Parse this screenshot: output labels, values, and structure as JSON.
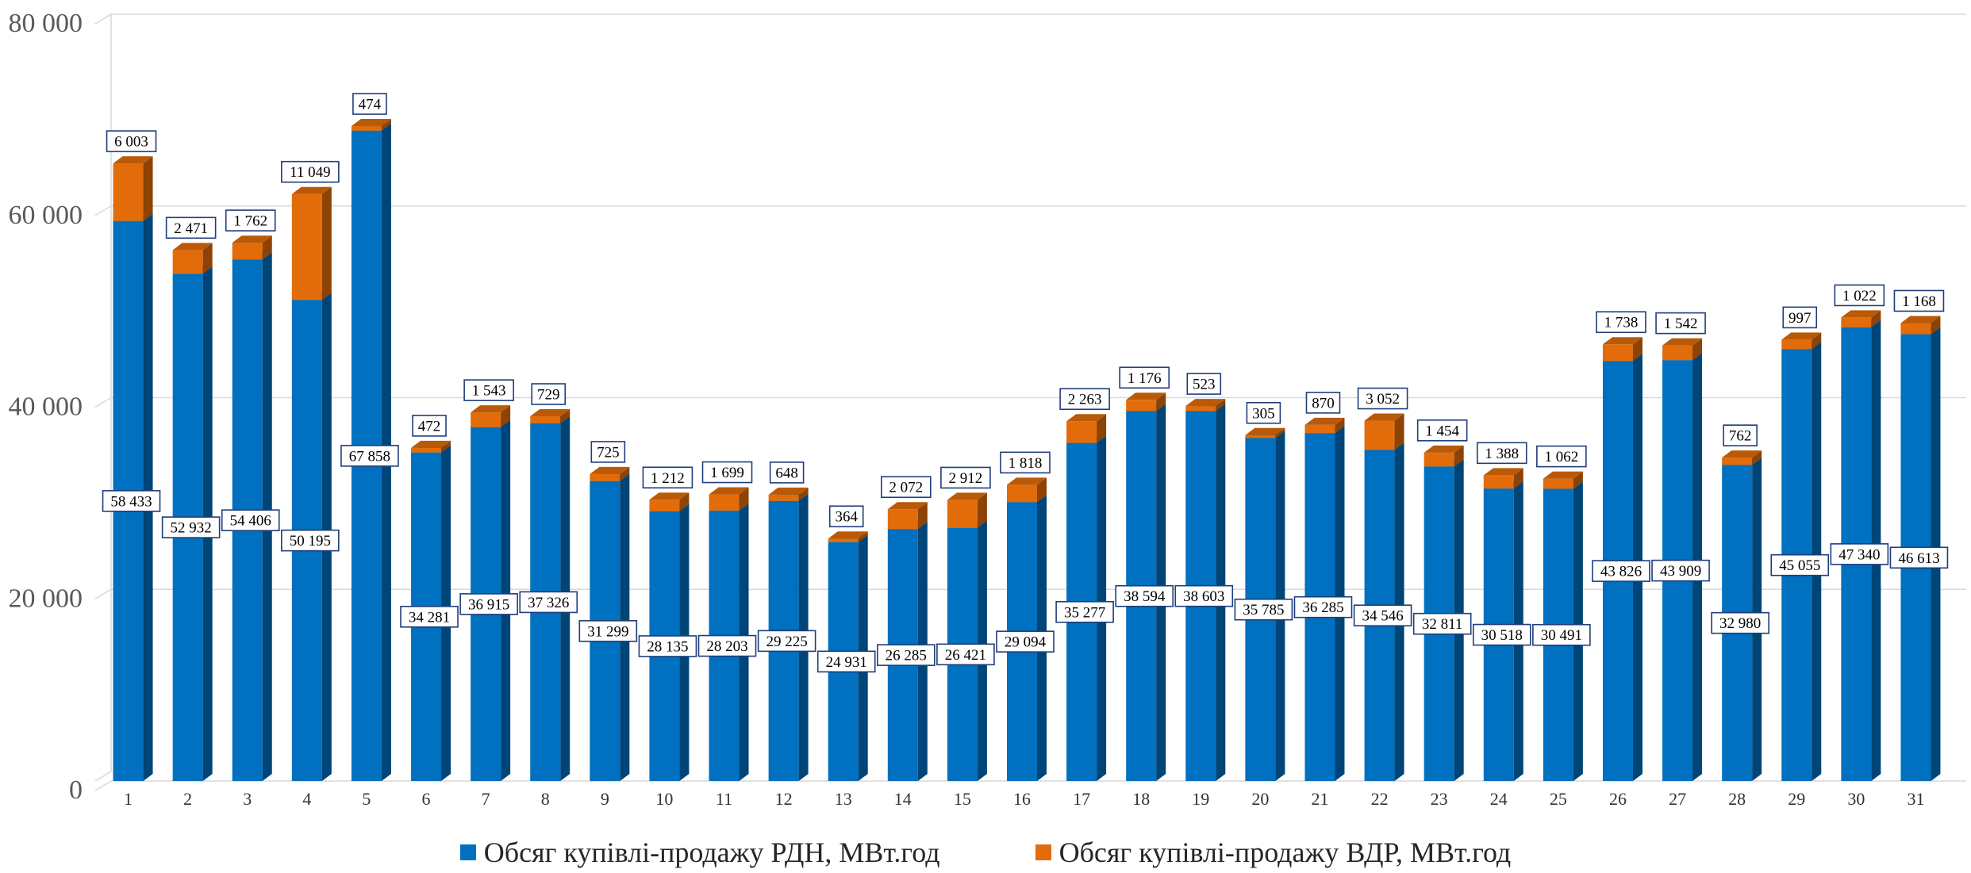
{
  "chart_data": {
    "type": "bar",
    "stacked": true,
    "categories": [
      "1",
      "2",
      "3",
      "4",
      "5",
      "6",
      "7",
      "8",
      "9",
      "10",
      "11",
      "12",
      "13",
      "14",
      "15",
      "16",
      "17",
      "18",
      "19",
      "20",
      "21",
      "22",
      "23",
      "24",
      "25",
      "26",
      "27",
      "28",
      "29",
      "30",
      "31"
    ],
    "series": [
      {
        "name": "Обсяг купівлі-продажу РДН, МВт.год",
        "color": "#0070c0",
        "values": [
          58433,
          52932,
          54406,
          50195,
          67858,
          34281,
          36915,
          37326,
          31299,
          28135,
          28203,
          29225,
          24931,
          26285,
          26421,
          29094,
          35277,
          38594,
          38603,
          35785,
          36285,
          34546,
          32811,
          30518,
          30491,
          43826,
          43909,
          32980,
          45055,
          47340,
          46613
        ],
        "labels": [
          "58 433",
          "52 932",
          "54 406",
          "50 195",
          "67 858",
          "34 281",
          "36 915",
          "37 326",
          "31 299",
          "28 135",
          "28 203",
          "29 225",
          "24 931",
          "26 285",
          "26 421",
          "29 094",
          "35 277",
          "38 594",
          "38 603",
          "35 785",
          "36 285",
          "34 546",
          "32 811",
          "30 518",
          "30 491",
          "43 826",
          "43 909",
          "32 980",
          "45 055",
          "47 340",
          "46 613"
        ]
      },
      {
        "name": "Обсяг купівлі-продажу ВДР, МВт.год",
        "color": "#e36c0a",
        "values": [
          6003,
          2471,
          1762,
          11049,
          474,
          472,
          1543,
          729,
          725,
          1212,
          1699,
          648,
          364,
          2072,
          2912,
          1818,
          2263,
          1176,
          523,
          305,
          870,
          3052,
          1454,
          1388,
          1062,
          1738,
          1542,
          762,
          997,
          1022,
          1168
        ],
        "labels": [
          "6 003",
          "2 471",
          "1 762",
          "11 049",
          "474",
          "472",
          "1 543",
          "729",
          "725",
          "1 212",
          "1 699",
          "648",
          "364",
          "2 072",
          "2 912",
          "1 818",
          "2 263",
          "1 176",
          "523",
          "305",
          "870",
          "3 052",
          "1 454",
          "1 388",
          "1 062",
          "1 738",
          "1 542",
          "762",
          "997",
          "1 022",
          "1 168"
        ]
      }
    ],
    "ylim": [
      0,
      80000
    ],
    "yticks": [
      0,
      20000,
      40000,
      60000,
      80000
    ],
    "ytick_labels": [
      "0",
      "20 000",
      "40 000",
      "60 000",
      "80 000"
    ],
    "grid": true,
    "legend": "bottom",
    "style": "3d-column"
  }
}
